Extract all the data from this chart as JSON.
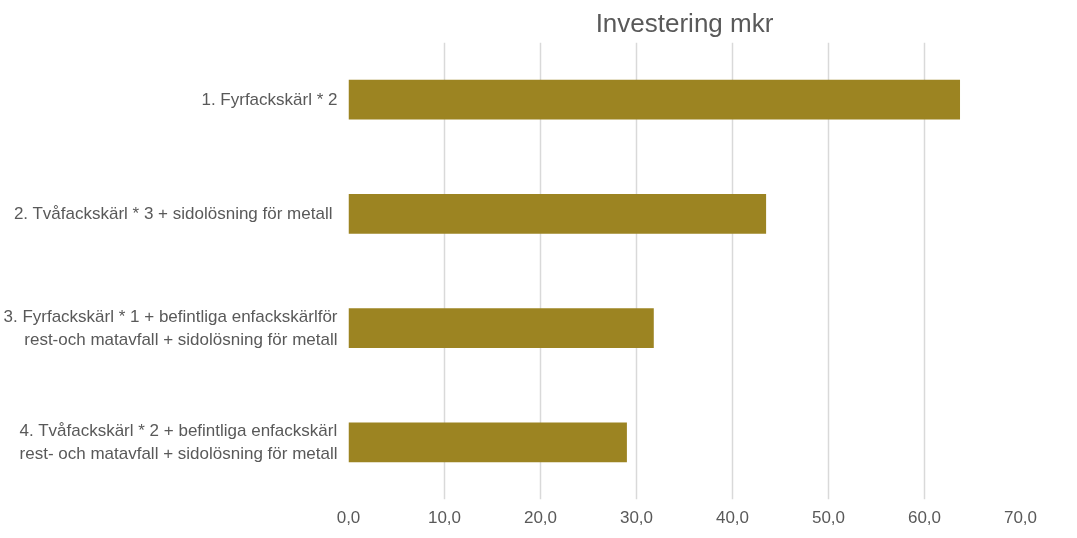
{
  "chart_data": {
    "type": "bar",
    "orientation": "horizontal",
    "title": "Investering mkr",
    "categories": [
      "1. Fyrfackskärl * 2",
      "2. Tvåfackskärl * 3  + sidolösning för metall",
      "3. Fyrfackskärl * 1 + befintliga enfackskärlför\nrest-och matavfall + sidolösning för metall",
      "4. Tvåfackskärl * 2 + befintliga enfackskärl\nrest- och matavfall + sidolösning för metall"
    ],
    "values": [
      63.7,
      43.5,
      31.8,
      29.0
    ],
    "color": "#9c8422",
    "xlim": [
      0,
      70
    ],
    "xticks": [
      {
        "value": 0,
        "label": "0,0"
      },
      {
        "value": 10,
        "label": "10,0"
      },
      {
        "value": 20,
        "label": "20,0"
      },
      {
        "value": 30,
        "label": "30,0"
      },
      {
        "value": 40,
        "label": "40,0"
      },
      {
        "value": 50,
        "label": "50,0"
      },
      {
        "value": 60,
        "label": "60,0"
      },
      {
        "value": 70,
        "label": "70,0"
      }
    ],
    "grid": "x"
  }
}
